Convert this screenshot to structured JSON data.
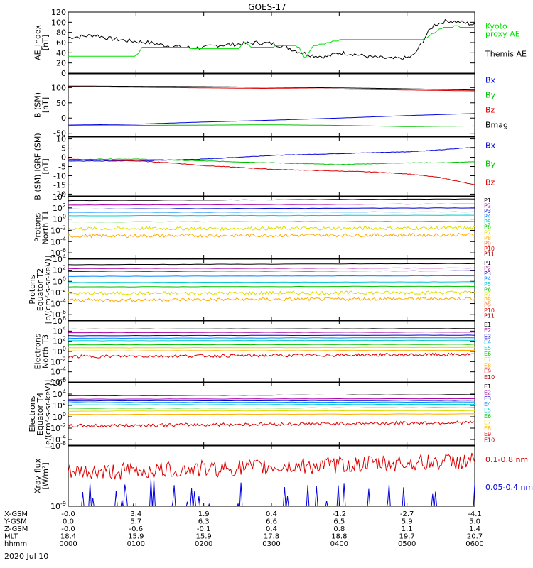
{
  "title": "GOES-17",
  "date": "2020 Jul 10",
  "chart_data": [
    {
      "type": "line",
      "ylabel": [
        "AE_index",
        "[nT]"
      ],
      "ylim": [
        0,
        120
      ],
      "yticks": [
        "0",
        "20",
        "40",
        "60",
        "80",
        "100",
        "120"
      ],
      "yticks_v": [
        0,
        20,
        40,
        60,
        80,
        100,
        120
      ],
      "series": [
        {
          "name": "Themis AE",
          "color": "#000000",
          "x": [
            0,
            0.2,
            0.4,
            0.6,
            0.8,
            1.0,
            1.2,
            1.4,
            1.6,
            1.8,
            2.0,
            2.2,
            2.4,
            2.6,
            2.8,
            3.0,
            3.2,
            3.4,
            3.6,
            3.8,
            4.0,
            4.2,
            4.4,
            4.6,
            4.8,
            5.0,
            5.1,
            5.2,
            5.3,
            5.4,
            5.6,
            5.8,
            6.0
          ],
          "values": [
            70,
            72,
            75,
            68,
            65,
            62,
            60,
            55,
            52,
            50,
            50,
            55,
            56,
            58,
            60,
            58,
            52,
            42,
            35,
            32,
            40,
            38,
            33,
            30,
            28,
            30,
            35,
            55,
            78,
            95,
            103,
            100,
            95
          ]
        },
        {
          "name": "Kyoto proxy AE",
          "color": "#00e000",
          "x": [
            0,
            0.4,
            0.9,
            1.0,
            1.1,
            1.4,
            2.0,
            2.5,
            2.6,
            2.7,
            3.0,
            3.2,
            3.4,
            3.5,
            3.6,
            4.0,
            4.5,
            4.9,
            5.0,
            5.2,
            5.3,
            5.5,
            5.7,
            6.0
          ],
          "values": [
            33,
            33,
            33,
            33,
            52,
            52,
            48,
            48,
            60,
            52,
            52,
            55,
            52,
            28,
            52,
            65,
            65,
            65,
            66,
            66,
            70,
            88,
            92,
            90
          ]
        }
      ],
      "legend": [
        {
          "lines": [
            "Kyoto",
            "proxy AE"
          ],
          "color": "#00e000"
        },
        {
          "lines": [
            "Themis AE"
          ],
          "color": "#000000"
        }
      ]
    },
    {
      "type": "line",
      "ylabel": [
        "B (SM)",
        "[nT]"
      ],
      "ylim": [
        -60,
        145
      ],
      "yticks": [
        "-50",
        "0",
        "50",
        "100"
      ],
      "yticks_v": [
        -50,
        0,
        50,
        100
      ],
      "series": [
        {
          "name": "Bx",
          "color": "#0000dd",
          "x": [
            0,
            1,
            2,
            3,
            4,
            5,
            6
          ],
          "values": [
            -23,
            -20,
            -13,
            -7,
            0,
            8,
            15
          ]
        },
        {
          "name": "By",
          "color": "#00c000",
          "x": [
            0,
            1,
            2,
            3,
            4,
            5,
            6
          ],
          "values": [
            -25,
            -24,
            -23,
            -22,
            -24,
            -28,
            -26
          ]
        },
        {
          "name": "Bz",
          "color": "#dd0000",
          "x": [
            0,
            1,
            2,
            3,
            4,
            5,
            6
          ],
          "values": [
            103,
            101,
            99,
            97,
            95,
            92,
            89
          ]
        },
        {
          "name": "Bmag",
          "color": "#000000",
          "x": [
            0,
            1,
            2,
            3,
            4,
            5,
            6
          ],
          "values": [
            105,
            104,
            103,
            101,
            99,
            96,
            92
          ]
        }
      ],
      "legend": [
        {
          "lines": [
            "Bx"
          ],
          "color": "#0000dd"
        },
        {
          "lines": [
            "By"
          ],
          "color": "#00c000"
        },
        {
          "lines": [
            "Bz"
          ],
          "color": "#dd0000"
        },
        {
          "lines": [
            "Bmag"
          ],
          "color": "#000000"
        }
      ]
    },
    {
      "type": "line",
      "ylabel": [
        "B (SM)-IGRF (SM)",
        "[nT]"
      ],
      "ylim": [
        -21,
        11
      ],
      "yticks": [
        "-20",
        "-15",
        "-10",
        "-5",
        "0",
        "5",
        "10"
      ],
      "yticks_v": [
        -20,
        -15,
        -10,
        -5,
        0,
        5,
        10
      ],
      "series": [
        {
          "name": "Bx",
          "color": "#0000dd",
          "x": [
            0,
            0.5,
            1,
            1.5,
            2,
            2.5,
            3,
            3.5,
            4,
            4.5,
            5,
            5.5,
            6
          ],
          "values": [
            -2,
            -2,
            -2,
            -1.5,
            -1,
            0,
            1,
            1.5,
            2,
            2.5,
            3,
            4,
            5.5
          ]
        },
        {
          "name": "By",
          "color": "#00c000",
          "x": [
            0,
            0.5,
            1,
            1.5,
            2,
            2.5,
            3,
            3.5,
            4,
            4.5,
            5,
            5.5,
            6
          ],
          "values": [
            -1.5,
            -1,
            -1,
            -1.5,
            -2,
            -2.5,
            -3,
            -3.5,
            -4,
            -3.5,
            -3,
            -3,
            -2.5
          ]
        },
        {
          "name": "Bz",
          "color": "#dd0000",
          "x": [
            0,
            0.5,
            1,
            1.5,
            2,
            2.5,
            3,
            3.5,
            4,
            4.5,
            5,
            5.5,
            6
          ],
          "values": [
            -1,
            -1.5,
            -2,
            -3,
            -4.5,
            -5.5,
            -6.5,
            -7,
            -7.5,
            -8,
            -9,
            -11,
            -15
          ]
        }
      ],
      "legend": [
        {
          "lines": [
            "Bx"
          ],
          "color": "#0000dd"
        },
        {
          "lines": [
            "By"
          ],
          "color": "#00c000"
        },
        {
          "lines": [
            "Bz"
          ],
          "color": "#dd0000"
        }
      ]
    },
    {
      "type": "line",
      "log": true,
      "ylabel": [
        "Protons",
        "North T1"
      ],
      "ylim_exp": [
        -7,
        4
      ],
      "yticks": [
        "10^4",
        "10^2",
        "10^0",
        "10^-2",
        "10^-4",
        "10^-6"
      ],
      "yticks_v": [
        4,
        2,
        0,
        -2,
        -4,
        -6
      ],
      "series": [
        {
          "name": "P1",
          "color": "#000000",
          "levels": [
            3.3,
            3.6
          ]
        },
        {
          "name": "P2",
          "color": "#aa00aa",
          "levels": [
            2.5,
            2.7
          ]
        },
        {
          "name": "P3",
          "color": "#0000cc",
          "levels": [
            1.8,
            2.0
          ]
        },
        {
          "name": "P4",
          "color": "#0088ff",
          "levels": [
            1.2,
            1.3
          ]
        },
        {
          "name": "P5",
          "color": "#00cccc",
          "levels": [
            0.6,
            0.7
          ]
        },
        {
          "name": "P6",
          "color": "#00c000",
          "levels": [
            -0.5,
            -0.4
          ]
        },
        {
          "name": "P7",
          "color": "#dddd00",
          "levels": [
            -1.7,
            -1.6
          ]
        },
        {
          "name": "P8",
          "color": "#ffaa00",
          "levels": [
            -3.0,
            -2.8
          ]
        }
      ],
      "legend": [
        "P1",
        "P2",
        "P3",
        "P4",
        "P5",
        "P6",
        "P7",
        "P8",
        "P9",
        "P10",
        "P11"
      ],
      "legend_colors": [
        "#000000",
        "#aa00aa",
        "#0000cc",
        "#0088ff",
        "#00cccc",
        "#00c000",
        "#dddd00",
        "#ffaa00",
        "#ff6600",
        "#dd0000",
        "#990000"
      ]
    },
    {
      "type": "line",
      "log": true,
      "ylabel": [
        "Protons",
        "Equator T2",
        "[p/(cm²-s-sr-keV)]"
      ],
      "ylim_exp": [
        -7,
        4
      ],
      "yticks": [
        "10^4",
        "10^2",
        "10^0",
        "10^-2",
        "10^-4",
        "10^-6"
      ],
      "yticks_v": [
        4,
        2,
        0,
        -2,
        -4,
        -6
      ],
      "series": [
        {
          "name": "P1",
          "color": "#000000",
          "levels": [
            3.0,
            3.2
          ]
        },
        {
          "name": "P2",
          "color": "#aa00aa",
          "levels": [
            2.3,
            2.4
          ]
        },
        {
          "name": "P3",
          "color": "#0000cc",
          "levels": [
            1.8,
            1.9
          ]
        },
        {
          "name": "P4",
          "color": "#0088ff",
          "levels": [
            0.9,
            1.0
          ]
        },
        {
          "name": "P5",
          "color": "#00cccc",
          "levels": [
            -0.2,
            -0.1
          ]
        },
        {
          "name": "P6",
          "color": "#00c000",
          "levels": [
            -1.0,
            -0.9
          ]
        },
        {
          "name": "P7",
          "color": "#dddd00",
          "levels": [
            -2.2,
            -2.0
          ]
        },
        {
          "name": "P8",
          "color": "#ffaa00",
          "levels": [
            -3.4,
            -3.1
          ]
        }
      ],
      "legend": [
        "P1",
        "P2",
        "P3",
        "P4",
        "P5",
        "P6",
        "P7",
        "P8",
        "P9",
        "P10",
        "P11"
      ],
      "legend_colors": [
        "#000000",
        "#aa00aa",
        "#0000cc",
        "#0088ff",
        "#00cccc",
        "#00c000",
        "#dddd00",
        "#ffaa00",
        "#ff6600",
        "#dd0000",
        "#990000"
      ]
    },
    {
      "type": "line",
      "log": true,
      "ylabel": [
        "Electrons",
        "North T3"
      ],
      "ylim_exp": [
        -6,
        6
      ],
      "yticks": [
        "10^6",
        "10^4",
        "10^2",
        "10^0",
        "10^-2",
        "10^-4",
        "10^-6"
      ],
      "yticks_v": [
        6,
        4,
        2,
        0,
        -2,
        -4,
        -6
      ],
      "series": [
        {
          "name": "E1",
          "color": "#000000",
          "levels": [
            4.4,
            4.5
          ]
        },
        {
          "name": "E2",
          "color": "#aa00aa",
          "levels": [
            3.7,
            3.8
          ]
        },
        {
          "name": "E3",
          "color": "#0000cc",
          "levels": [
            3.1,
            3.2
          ]
        },
        {
          "name": "E4",
          "color": "#0088ff",
          "levels": [
            2.6,
            2.7
          ]
        },
        {
          "name": "E5",
          "color": "#00cccc",
          "levels": [
            2.1,
            2.2
          ]
        },
        {
          "name": "E6",
          "color": "#00c000",
          "levels": [
            1.3,
            1.4
          ]
        },
        {
          "name": "E7",
          "color": "#dddd00",
          "levels": [
            0.7,
            0.8
          ]
        },
        {
          "name": "E8",
          "color": "#ffaa00",
          "levels": [
            0.1,
            0.2
          ]
        },
        {
          "name": "E9",
          "color": "#dd0000",
          "levels": [
            -1.0,
            -0.6
          ]
        }
      ],
      "legend": [
        "E1",
        "E2",
        "E3",
        "E4",
        "E5",
        "E6",
        "E7",
        "E8",
        "E9",
        "E10"
      ],
      "legend_colors": [
        "#000000",
        "#aa00aa",
        "#0000cc",
        "#0088ff",
        "#00cccc",
        "#00c000",
        "#dddd00",
        "#ffaa00",
        "#dd0000",
        "#990000"
      ]
    },
    {
      "type": "line",
      "log": true,
      "ylabel": [
        "Electrons",
        "Equator T4",
        "[e/(cm²-s-sr-keV)]"
      ],
      "ylim_exp": [
        -5,
        6
      ],
      "yticks": [
        "10^6",
        "10^4",
        "10^2",
        "10^0",
        "10^-2",
        "10^-4"
      ],
      "yticks_v": [
        6,
        4,
        2,
        0,
        -2,
        -4
      ],
      "series": [
        {
          "name": "E1",
          "color": "#000000",
          "levels": [
            3.7,
            3.9
          ]
        },
        {
          "name": "E2",
          "color": "#aa00aa",
          "levels": [
            3.1,
            3.2
          ]
        },
        {
          "name": "E3",
          "color": "#0000cc",
          "levels": [
            2.8,
            2.9
          ]
        },
        {
          "name": "E4",
          "color": "#0088ff",
          "levels": [
            2.5,
            2.6
          ]
        },
        {
          "name": "E5",
          "color": "#00cccc",
          "levels": [
            2.1,
            2.2
          ]
        },
        {
          "name": "E6",
          "color": "#00c000",
          "levels": [
            1.5,
            1.6
          ]
        },
        {
          "name": "E7",
          "color": "#dddd00",
          "levels": [
            1.0,
            1.1
          ]
        },
        {
          "name": "E8",
          "color": "#ffaa00",
          "levels": [
            0.4,
            0.5
          ]
        },
        {
          "name": "E9",
          "color": "#dd0000",
          "levels": [
            -1.6,
            -1.0
          ]
        }
      ],
      "legend": [
        "E1",
        "E2",
        "E3",
        "E4",
        "E5",
        "E6",
        "E7",
        "E8",
        "E9",
        "E10"
      ],
      "legend_colors": [
        "#000000",
        "#aa00aa",
        "#0000cc",
        "#0088ff",
        "#00cccc",
        "#00c000",
        "#dddd00",
        "#ffaa00",
        "#dd0000",
        "#990000"
      ]
    },
    {
      "type": "line",
      "log": true,
      "ylabel": [
        "Xray flux",
        "[W/m²]"
      ],
      "ylim_exp": [
        -9,
        -8
      ],
      "yticks": [
        "10^-8",
        "10^-9"
      ],
      "yticks_v": [
        -8,
        -9
      ],
      "series": [
        {
          "name": "0.1-0.8 nm",
          "color": "#dd0000",
          "levels": [
            -8.45,
            -8.25
          ]
        },
        {
          "name": "0.05-0.4 nm",
          "color": "#0000dd",
          "levels": [
            -9.0,
            -8.8
          ]
        }
      ],
      "legend": [
        {
          "lines": [
            "0.1-0.8 nm"
          ],
          "color": "#dd0000"
        },
        {
          "lines": [
            "0.05-0.4 nm"
          ],
          "color": "#0000dd"
        }
      ]
    }
  ],
  "x_axis": {
    "xlim": [
      0,
      6
    ],
    "rows": [
      {
        "label": "X-GSM",
        "values": [
          "-0.0",
          "3.4",
          "1.9",
          "0.4",
          "-1.2",
          "-2.7",
          "-4.1"
        ]
      },
      {
        "label": "Y-GSM",
        "values": [
          "0.0",
          "5.7",
          "6.3",
          "6.6",
          "6.5",
          "5.9",
          "5.0"
        ]
      },
      {
        "label": "Z-GSM",
        "values": [
          "-0.0",
          "-0.6",
          "-0.1",
          "0.4",
          "0.8",
          "1.1",
          "1.4"
        ]
      },
      {
        "label": "MLT",
        "values": [
          "18.4",
          "15.9",
          "15.9",
          "17.8",
          "18.8",
          "19.7",
          "20.7"
        ]
      },
      {
        "label": "hhmm",
        "values": [
          "0000",
          "0100",
          "0200",
          "0300",
          "0400",
          "0500",
          "0600"
        ]
      }
    ]
  }
}
